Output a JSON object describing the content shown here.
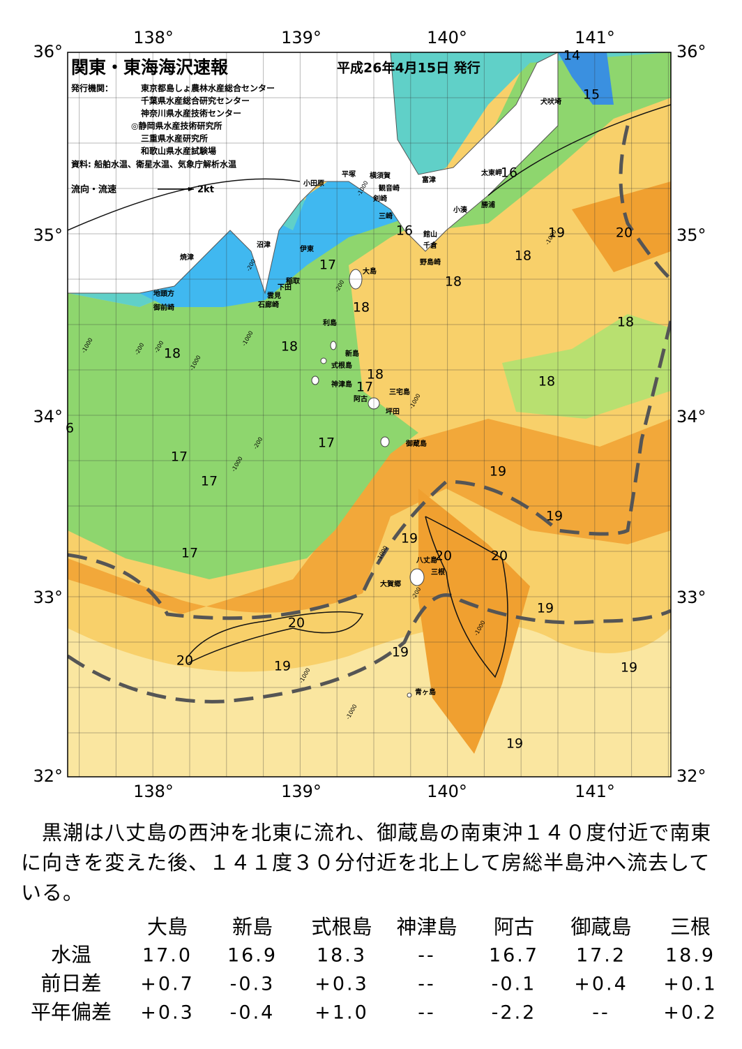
{
  "header": {
    "title": "関東・東海海沢速報",
    "date": "平成26年4月15日 発行",
    "issuer_label": "発行機関：",
    "agencies": [
      "東京都島しょ農林水産総合センター",
      "千葉県水産総合研究センター",
      "神奈川県水産技術センター",
      "◎静岡県水産技術研究所",
      "三重県水産研究所",
      "和歌山県水産試験場"
    ],
    "source": "資料: 船舶水温、衛星水温、気象庁解析水温",
    "legend_label": "流向・流速",
    "legend_speed": "2kt"
  },
  "map": {
    "lon_labels": [
      "138°",
      "139°",
      "140°",
      "141°"
    ],
    "lat_labels": [
      "36°",
      "35°",
      "34°",
      "33°",
      "32°"
    ],
    "places": [
      "犬吠埼",
      "太東岬",
      "勝浦",
      "小湊",
      "富津",
      "横須賀",
      "観音崎",
      "平塚",
      "小田原",
      "剣崎",
      "三崎",
      "館山",
      "千倉",
      "野島崎",
      "大島",
      "沼津",
      "伊東",
      "焼津",
      "稲取",
      "下田",
      "雲見",
      "石廊崎",
      "地頭方",
      "御前崎",
      "利島",
      "新島",
      "式根島",
      "神津島",
      "阿古",
      "三宅島",
      "坪田",
      "御蔵島",
      "八丈島",
      "三根",
      "大賀郷",
      "青ヶ島"
    ],
    "contour_labels": [
      "14",
      "15",
      "16",
      "19",
      "20",
      "18",
      "17",
      "18",
      "18",
      "18",
      "18",
      "18",
      "18",
      "18",
      "17",
      "17",
      "17",
      "19",
      "19",
      "17",
      "19",
      "20",
      "20",
      "20",
      "19",
      "20",
      "19",
      "19",
      "19",
      "19",
      "16",
      "17",
      "6"
    ],
    "depth_labels": [
      "-1000",
      "-200",
      "-200",
      "-1000",
      "-1000",
      "-200",
      "-1000",
      "-1000",
      "-200",
      "-1000",
      "-1000",
      "-1000",
      "-200",
      "-1000",
      "-200",
      "-1000",
      "-1000"
    ]
  },
  "text": "　黒潮は八丈島の西沖を北東に流れ、御蔵島の南東沖１４０度付近で南東に向きを変えた後、１４１度３０分付近を北上して房総半島沖へ流去している。",
  "table": {
    "columns": [
      "大島",
      "新島",
      "式根島",
      "神津島",
      "阿古",
      "御蔵島",
      "三根"
    ],
    "rows": [
      {
        "label": "水温",
        "values": [
          "17.0",
          "16.9",
          "18.3",
          "--",
          "16.7",
          "17.2",
          "18.9"
        ]
      },
      {
        "label": "前日差",
        "values": [
          "+0.7",
          "-0.3",
          "+0.3",
          "--",
          "-0.1",
          "+0.4",
          "+0.1"
        ]
      },
      {
        "label": "平年偏差",
        "values": [
          "+0.3",
          "-0.4",
          "+1.0",
          "--",
          "-2.2",
          "--",
          "+0.2"
        ]
      }
    ]
  }
}
